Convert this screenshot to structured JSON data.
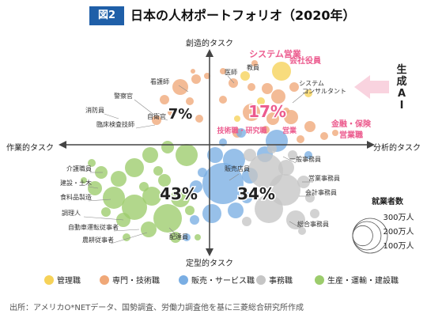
{
  "figure": {
    "badge": "図2",
    "title": "日本の人材ポートフォリオ（2020年）",
    "source": "出所：アメリカO*NETデータ、国勢調査、労働力調査他を基に三菱総合研究所作成"
  },
  "chart_data": {
    "type": "scatter",
    "title": "日本の人材ポートフォリオ（2020年）",
    "axes": {
      "top": "創造的タスク",
      "bottom": "定型的タスク",
      "left": "作業的タスク",
      "right": "分析的タスク"
    },
    "ai_arrow_label": "生成AI",
    "colors": {
      "管理職": "#f6d258",
      "専門・技術職": "#f0a878",
      "販売・サービス職": "#7aaee3",
      "事務職": "#c5c5c5",
      "生産・運輸・建設職": "#9ccc6c"
    },
    "group_shares": [
      {
        "category": "管理職",
        "share": "",
        "value": null
      },
      {
        "category": "専門・技術職",
        "share": "17%",
        "value": 17
      },
      {
        "category": "販売・サービス職",
        "share": "34%",
        "value": 34
      },
      {
        "category": "事務職",
        "share": "34%",
        "value": 34
      },
      {
        "category": "生産・運輸・建設職",
        "share": "43%",
        "value": 43
      }
    ],
    "percent_labels": [
      {
        "text": "7%",
        "color": "#222222"
      },
      {
        "text": "17%",
        "color": "#ec5b8e"
      },
      {
        "text": "43%",
        "color": "#222222"
      },
      {
        "text": "34%",
        "color": "#222222"
      }
    ],
    "legend": [
      {
        "label": "管理職",
        "color": "#f6d258"
      },
      {
        "label": "専門・技術職",
        "color": "#f0a878"
      },
      {
        "label": "販売・サービス職",
        "color": "#7aaee3"
      },
      {
        "label": "事務職",
        "color": "#c5c5c5"
      },
      {
        "label": "生産・運輸・建設職",
        "color": "#9ccc6c"
      }
    ],
    "size_legend": {
      "title": "就業者数",
      "items": [
        "300万人",
        "200万人",
        "100万人"
      ],
      "values": [
        300,
        200,
        100
      ]
    },
    "occupation_labels": [
      {
        "text": "システム営業",
        "color": "#ec5b8e"
      },
      {
        "text": "会社役員",
        "color": "#ec5b8e"
      },
      {
        "text": "医師",
        "color": "#333333"
      },
      {
        "text": "教員",
        "color": "#333333"
      },
      {
        "text": "看護師",
        "color": "#333333"
      },
      {
        "text": "警察官",
        "color": "#333333"
      },
      {
        "text": "消防員",
        "color": "#333333"
      },
      {
        "text": "自衛官",
        "color": "#333333"
      },
      {
        "text": "臨床検査技師",
        "color": "#333333"
      },
      {
        "text": "システム",
        "color": "#333333"
      },
      {
        "text": "コンサルタント",
        "color": "#333333"
      },
      {
        "text": "技術職・研究職",
        "color": "#ec5b8e"
      },
      {
        "text": "営業",
        "color": "#ec5b8e"
      },
      {
        "text": "金融・保険",
        "color": "#ec5b8e"
      },
      {
        "text": "営業職",
        "color": "#ec5b8e"
      },
      {
        "text": "一般事務員",
        "color": "#333333"
      },
      {
        "text": "営業事務員",
        "color": "#333333"
      },
      {
        "text": "会計事務員",
        "color": "#333333"
      },
      {
        "text": "総合事務員",
        "color": "#333333"
      },
      {
        "text": "販売店員",
        "color": "#333333"
      },
      {
        "text": "介護職員",
        "color": "#333333"
      },
      {
        "text": "建設・土木",
        "color": "#333333"
      },
      {
        "text": "食料品製造",
        "color": "#333333"
      },
      {
        "text": "調理人",
        "color": "#333333"
      },
      {
        "text": "自動車運転従事者",
        "color": "#333333"
      },
      {
        "text": "農耕従事者",
        "color": "#333333"
      },
      {
        "text": "配達員",
        "color": "#333333"
      }
    ]
  }
}
